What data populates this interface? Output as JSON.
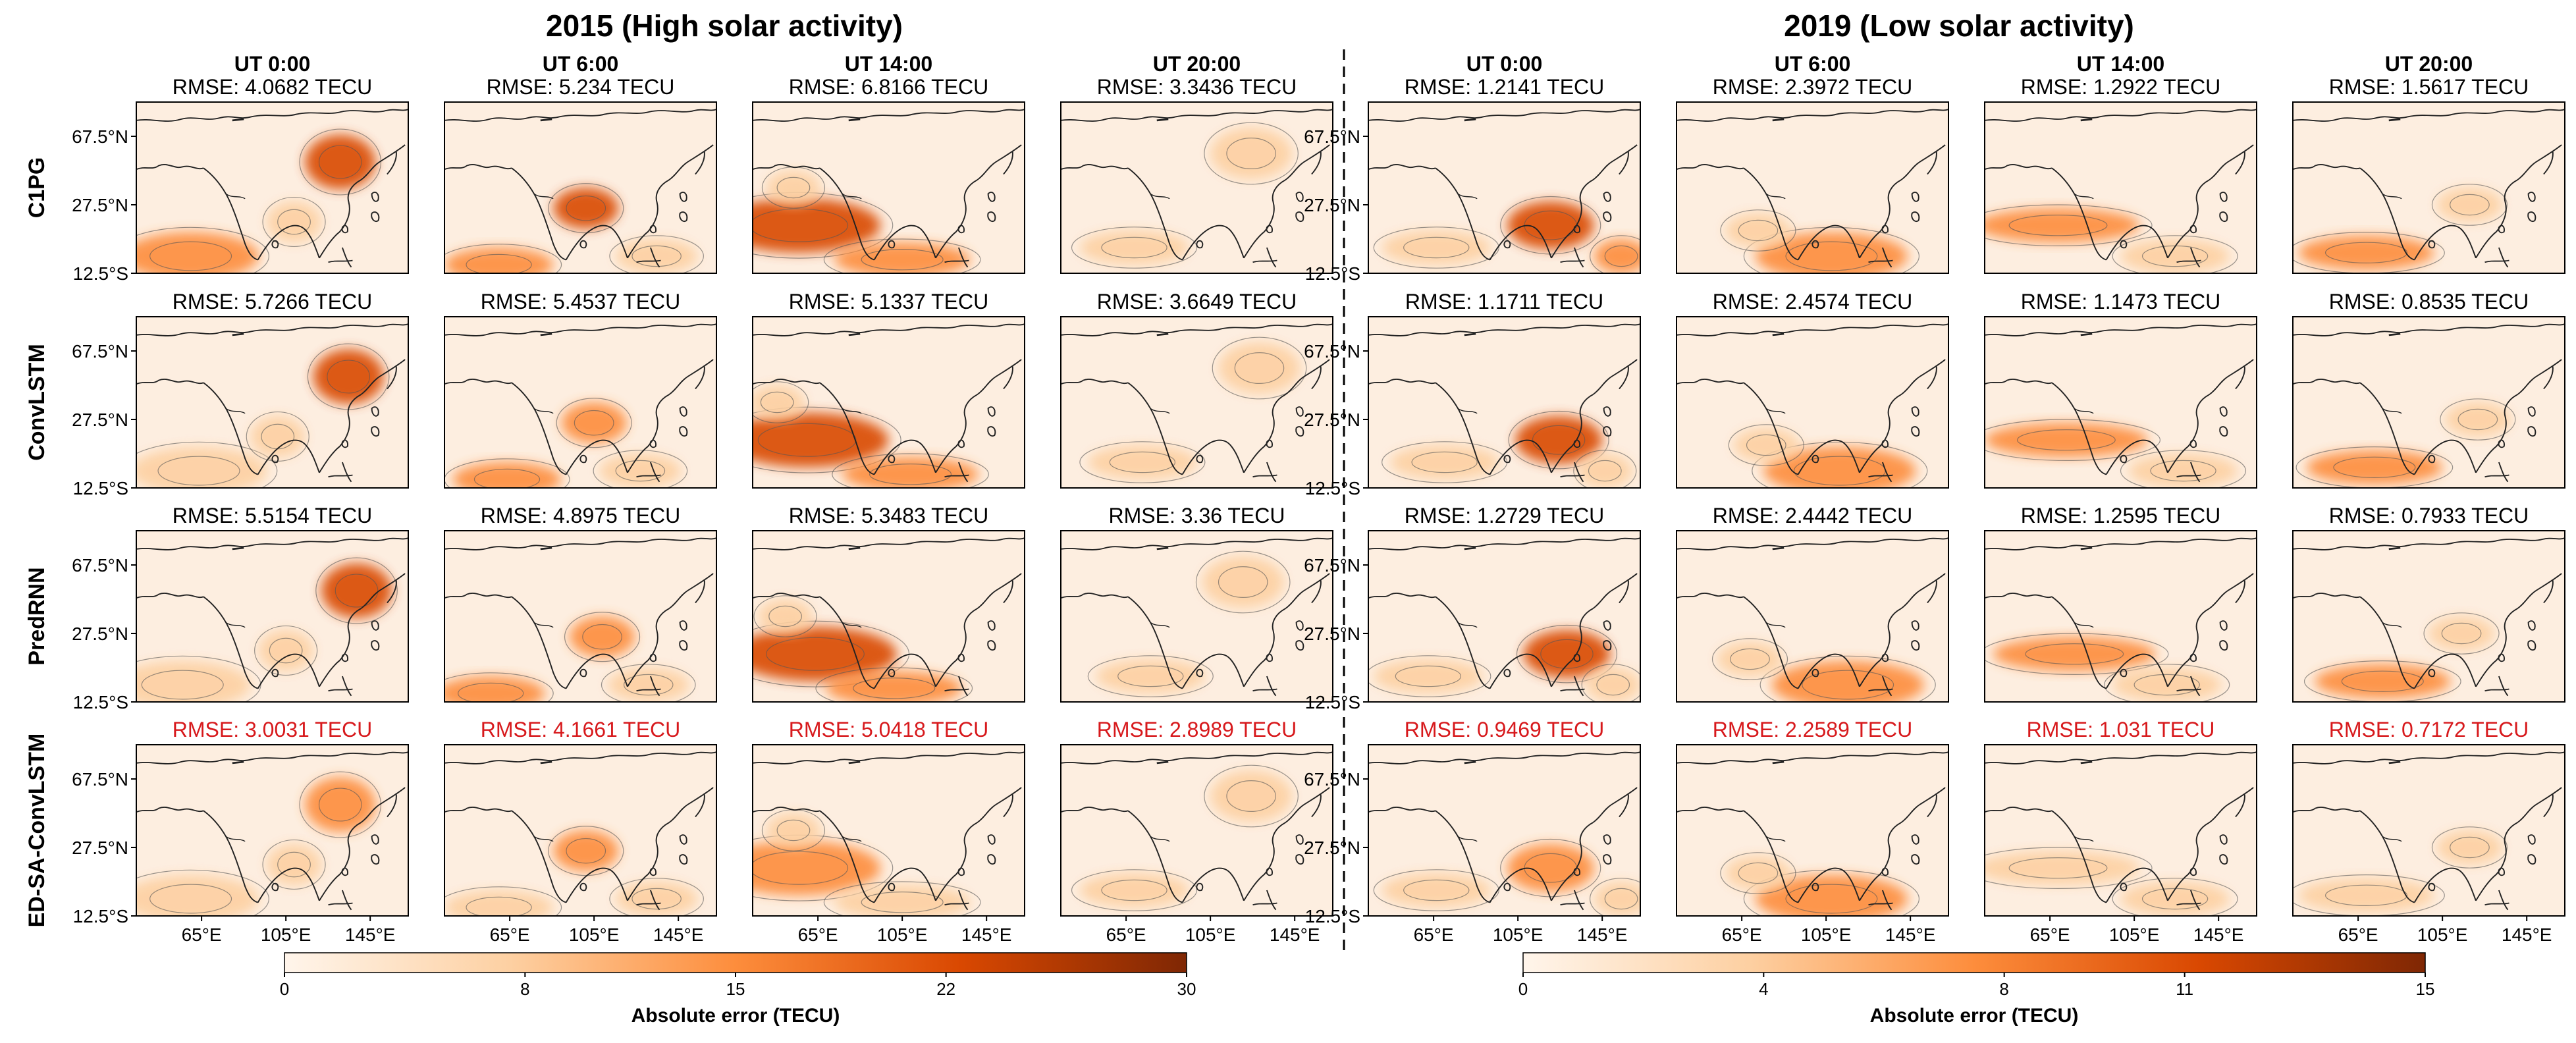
{
  "chart_data": {
    "type": "heatmap",
    "groups": [
      {
        "title": "2015 (High solar activity)",
        "colorbar": {
          "label": "Absolute error (TECU)",
          "ticks": [
            0,
            8,
            15,
            22,
            30
          ],
          "range": [
            0,
            30
          ]
        }
      },
      {
        "title": "2019 (Low solar activity)",
        "colorbar": {
          "label": "Absolute error (TECU)",
          "ticks": [
            0,
            4,
            8,
            11,
            15
          ],
          "range": [
            0,
            15
          ]
        }
      }
    ],
    "times": [
      "UT 0:00",
      "UT 6:00",
      "UT 14:00",
      "UT 20:00"
    ],
    "models": [
      "C1PG",
      "ConvLSTM",
      "PredRNN",
      "ED-SA-ConvLSTM"
    ],
    "best_model": "ED-SA-ConvLSTM",
    "lat_ticks": [
      "67.5°N",
      "27.5°N",
      "12.5°S"
    ],
    "lon_ticks": [
      "65°E",
      "105°E",
      "145°E"
    ],
    "rmse_prefix": "RMSE: ",
    "rmse_unit": " TECU",
    "rmse": {
      "2015": [
        [
          "4.0682",
          "5.234",
          "6.8166",
          "3.3436"
        ],
        [
          "5.7266",
          "5.4537",
          "5.1337",
          "3.6649"
        ],
        [
          "5.5154",
          "4.8975",
          "5.3483",
          "3.36"
        ],
        [
          "3.0031",
          "4.1661",
          "5.0418",
          "2.8989"
        ]
      ],
      "2019": [
        [
          "1.2141",
          "2.3972",
          "1.2922",
          "1.5617"
        ],
        [
          "1.1711",
          "2.4574",
          "1.1473",
          "0.8535"
        ],
        [
          "1.2729",
          "2.4442",
          "1.2595",
          "0.7933"
        ],
        [
          "0.9469",
          "2.2589",
          "1.031",
          "0.7172"
        ]
      ]
    },
    "colormap": [
      "#fff5eb",
      "#fdd0a2",
      "#fd8d3c",
      "#d94801",
      "#7f2704"
    ],
    "best_color": "#d7191c"
  }
}
